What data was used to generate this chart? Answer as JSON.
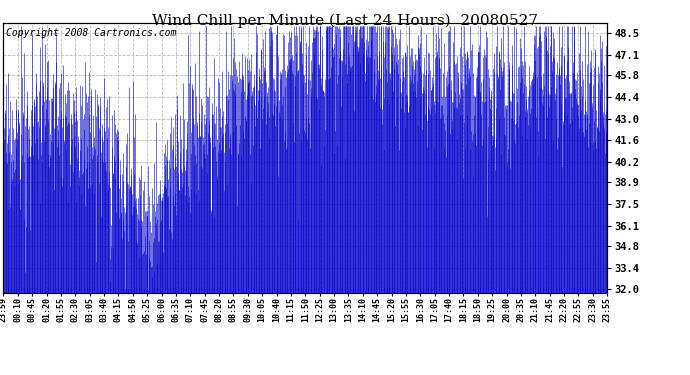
{
  "title": "Wind Chill per Minute (Last 24 Hours)  20080527",
  "copyright": "Copyright 2008 Cartronics.com",
  "yticks": [
    32.0,
    33.4,
    34.8,
    36.1,
    37.5,
    38.9,
    40.2,
    41.6,
    43.0,
    44.4,
    45.8,
    47.1,
    48.5
  ],
  "ylim": [
    31.8,
    49.2
  ],
  "line_color": "#0000CC",
  "bg_color": "#FFFFFF",
  "plot_bg_color": "#FFFFFF",
  "grid_color": "#AAAAAA",
  "title_fontsize": 11,
  "copyright_fontsize": 7,
  "xtick_labels": [
    "23:59",
    "00:10",
    "00:45",
    "01:20",
    "01:55",
    "02:30",
    "03:05",
    "03:40",
    "04:15",
    "04:50",
    "05:25",
    "06:00",
    "06:35",
    "07:10",
    "07:45",
    "08:20",
    "08:55",
    "09:30",
    "10:05",
    "10:40",
    "11:15",
    "11:50",
    "12:25",
    "13:00",
    "13:35",
    "14:10",
    "14:45",
    "15:20",
    "15:55",
    "16:30",
    "17:05",
    "17:40",
    "18:15",
    "18:50",
    "19:25",
    "20:00",
    "20:35",
    "21:10",
    "21:45",
    "22:20",
    "22:55",
    "23:30",
    "23:55"
  ],
  "base_values": [
    41.0,
    41.5,
    42.5,
    43.0,
    43.0,
    42.5,
    42.0,
    41.5,
    40.0,
    38.5,
    35.0,
    38.0,
    40.0,
    41.5,
    42.0,
    42.0,
    43.5,
    44.5,
    45.0,
    45.5,
    45.8,
    46.5,
    47.5,
    47.8,
    48.0,
    48.5,
    47.5,
    46.5,
    46.0,
    45.5,
    45.5,
    45.2,
    45.0,
    45.0,
    44.8,
    44.5,
    44.5,
    45.8,
    46.0,
    45.5,
    45.0,
    44.5,
    44.4
  ],
  "noise_scale": 2.2,
  "spike_scale": 3.5,
  "seed": 17
}
